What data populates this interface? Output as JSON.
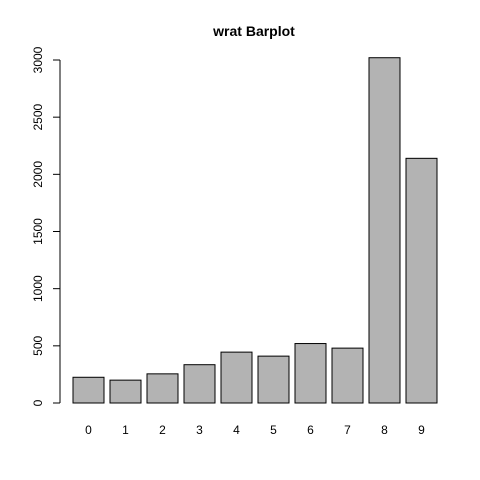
{
  "chart_data": {
    "type": "bar",
    "title": "wrat Barplot",
    "xlabel": "",
    "ylabel": "",
    "categories": [
      "0",
      "1",
      "2",
      "3",
      "4",
      "5",
      "6",
      "7",
      "8",
      "9"
    ],
    "values": [
      225,
      200,
      255,
      335,
      445,
      410,
      520,
      480,
      3020,
      2140
    ],
    "ylim": [
      0,
      3000
    ],
    "yticks": [
      0,
      500,
      1000,
      1500,
      2000,
      2500,
      3000
    ],
    "bar_color": "#b3b3b3",
    "bar_border_color": "#000000",
    "grid": false,
    "legend": "none"
  }
}
